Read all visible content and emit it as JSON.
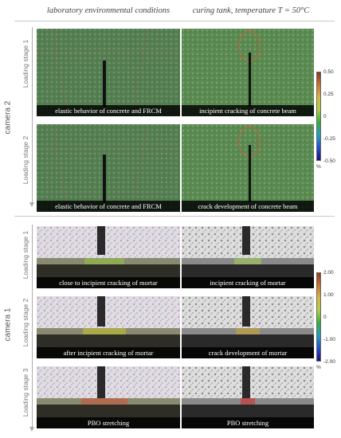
{
  "headers": {
    "left": "laboratory environmental conditions",
    "right": "curing tank, temperature T = 50°C"
  },
  "cameras": [
    {
      "label": "camera 2",
      "stages": [
        "Loading stage 1",
        "Loading stage 2"
      ],
      "panels": [
        {
          "caption": "elastic behavior of concrete and FRCM",
          "theme": "green"
        },
        {
          "caption": "incipient cracking of concrete beam",
          "theme": "green"
        },
        {
          "caption": "elastic behavior of concrete and FRCM",
          "theme": "green"
        },
        {
          "caption": "crack development of concrete beam",
          "theme": "green"
        }
      ],
      "colorbar": {
        "ticks": [
          "0.50",
          "0.25",
          "0",
          "-0.25",
          "-0.50"
        ],
        "unit": "%"
      }
    },
    {
      "label": "camera 1",
      "stages": [
        "Loading stage 1",
        "Loading stage 2",
        "Loading stage 3"
      ],
      "panels": [
        {
          "caption": "close to incipient cracking of mortar",
          "theme": "speckle"
        },
        {
          "caption": "incipient cracking of mortar",
          "theme": "speckle"
        },
        {
          "caption": "after incipient cracking of mortar",
          "theme": "speckle"
        },
        {
          "caption": "crack development of mortar",
          "theme": "speckle"
        },
        {
          "caption": "PBO stretching",
          "theme": "speckle"
        },
        {
          "caption": "PBO stretching",
          "theme": "speckle"
        }
      ],
      "colorbar": {
        "ticks": [
          "2.00",
          "1.00",
          "0",
          "-1.00",
          "-2.00"
        ],
        "unit": "%"
      }
    }
  ],
  "colors": {
    "green_bg": "#5a8a5a",
    "speckle_bg": "#d9d9d9",
    "crack": "#111111",
    "caption_bg": "#000000",
    "ellipse": "#b86a3a"
  }
}
